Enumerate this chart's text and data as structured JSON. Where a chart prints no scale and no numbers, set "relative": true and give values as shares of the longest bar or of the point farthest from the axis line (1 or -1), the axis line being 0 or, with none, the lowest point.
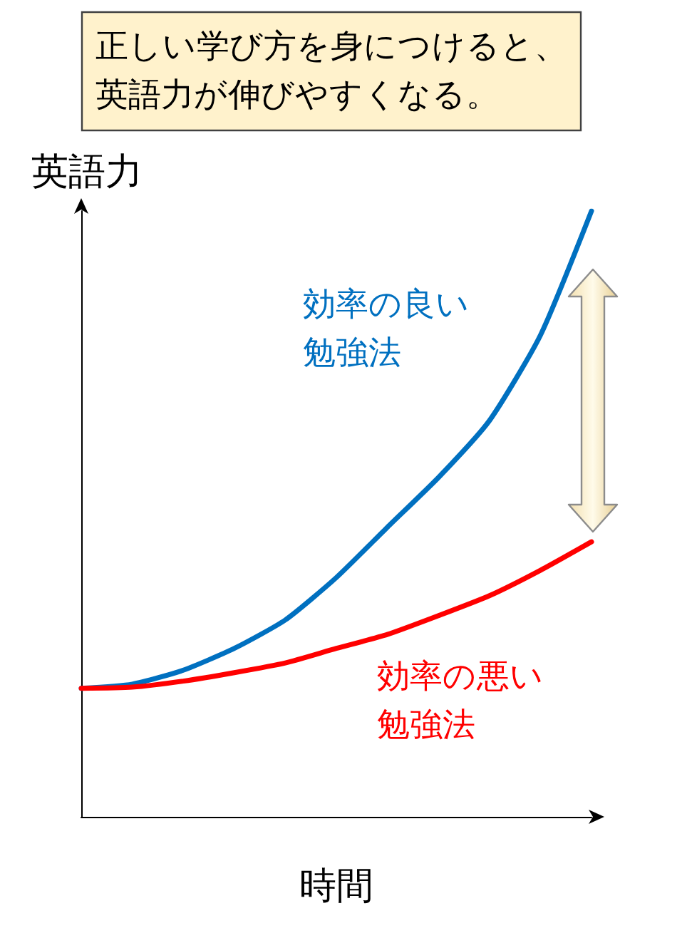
{
  "chart_data": {
    "type": "line",
    "relative": true,
    "title": "正しい学び方を身につけると、英語力が伸びやすくなる。",
    "xlabel": "時間",
    "ylabel": "英語力",
    "categories": [
      null,
      null,
      null,
      null,
      null,
      null,
      null,
      null,
      null,
      null,
      null
    ],
    "series": [
      {
        "name": "効率の良い勉強法",
        "color": "#0070c0",
        "values": [
          0.212,
          0.219,
          0.242,
          0.278,
          0.325,
          0.395,
          0.478,
          0.56,
          0.654,
          0.795,
          1
        ]
      },
      {
        "name": "効率の悪い勉強法",
        "color": "#ff0000",
        "values": [
          0.212,
          0.214,
          0.224,
          0.238,
          0.254,
          0.278,
          0.301,
          0.332,
          0.365,
          0.407,
          0.454
        ]
      }
    ],
    "grid": false,
    "marker": "none",
    "line_style": "solid"
  }
}
